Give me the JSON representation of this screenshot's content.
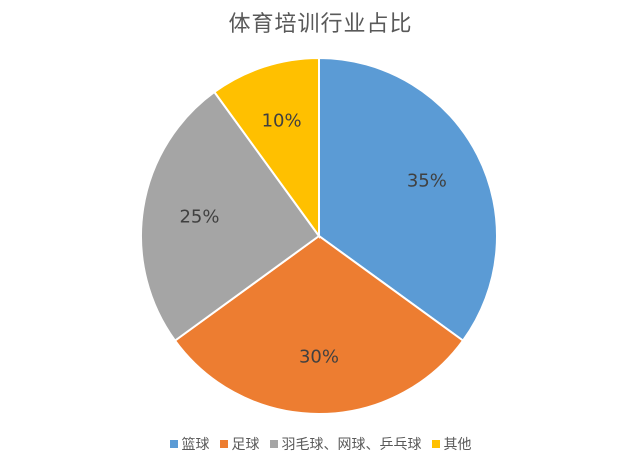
{
  "chart_data": {
    "type": "pie",
    "title": "体育培训行业占比",
    "categories": [
      "篮球",
      "足球",
      "羽毛球、网球、乒乓球",
      "其他"
    ],
    "values": [
      35,
      30,
      25,
      10
    ],
    "value_labels": [
      "35%",
      "30%",
      "25%",
      "10%"
    ],
    "colors": [
      "#5B9BD5",
      "#ED7D31",
      "#A5A5A5",
      "#FFC000"
    ],
    "start_angle_deg": 0,
    "direction": "clockwise",
    "legend_position": "bottom"
  }
}
